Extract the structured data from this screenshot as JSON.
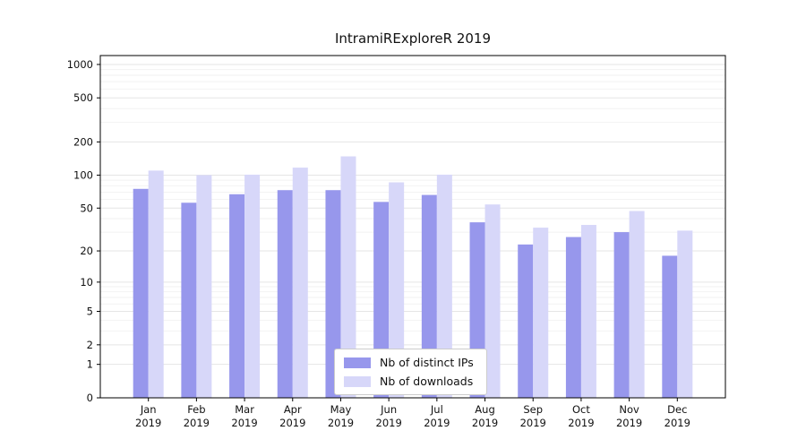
{
  "chart_data": {
    "type": "bar",
    "title": "IntramiRExploreR 2019",
    "categories": [
      "Jan 2019",
      "Feb 2019",
      "Mar 2019",
      "Apr 2019",
      "May 2019",
      "Jun 2019",
      "Jul 2019",
      "Aug 2019",
      "Sep 2019",
      "Oct 2019",
      "Nov 2019",
      "Dec 2019"
    ],
    "series": [
      {
        "name": "Nb of distinct IPs",
        "color": "#9797ec",
        "values": [
          75,
          56,
          67,
          73,
          73,
          57,
          66,
          37,
          23,
          27,
          30,
          18
        ]
      },
      {
        "name": "Nb of downloads",
        "color": "#d7d7f9",
        "values": [
          110,
          100,
          101,
          117,
          148,
          86,
          101,
          54,
          33,
          35,
          47,
          31
        ]
      }
    ],
    "xlabel": "",
    "ylabel": "",
    "y_scale": "log1p",
    "ylim": [
      0,
      1000
    ],
    "y_ticks": [
      0,
      1,
      2,
      5,
      10,
      20,
      50,
      100,
      200,
      500,
      1000
    ],
    "y_minor_gridlines": [
      3,
      4,
      6,
      7,
      8,
      9,
      30,
      40,
      60,
      70,
      80,
      90,
      300,
      400,
      600,
      700,
      800,
      900
    ],
    "grid": "horizontal",
    "legend_position": "lower center"
  }
}
